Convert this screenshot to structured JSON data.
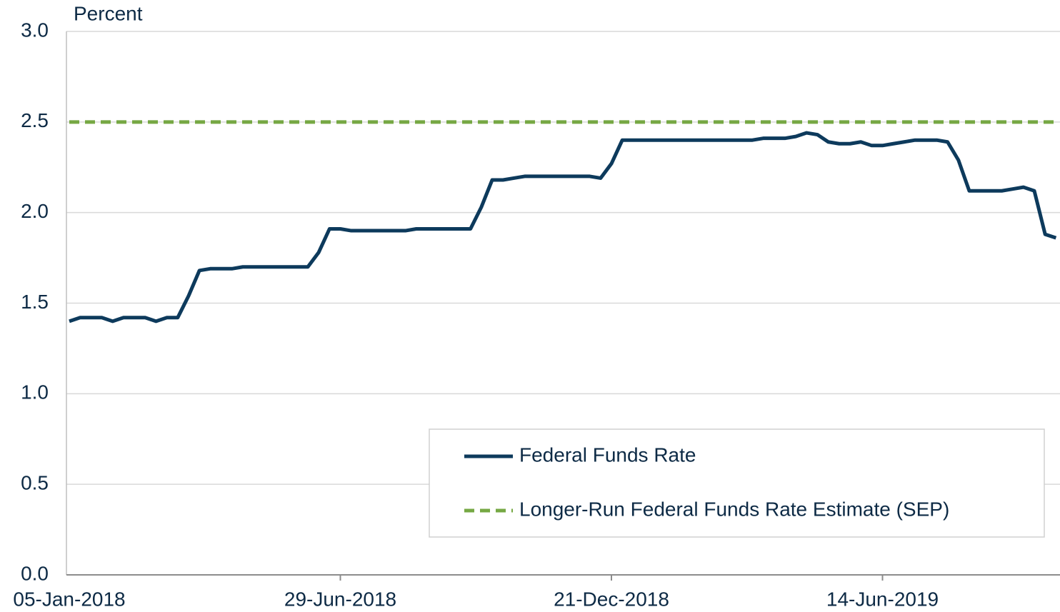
{
  "chart_data": {
    "type": "line",
    "y_axis_label": "Percent",
    "categories": [
      "05-Jan-2018",
      null,
      null,
      null,
      null,
      null,
      null,
      null,
      null,
      null,
      null,
      null,
      null,
      null,
      null,
      null,
      null,
      null,
      null,
      null,
      null,
      null,
      null,
      null,
      null,
      "29-Jun-2018",
      null,
      null,
      null,
      null,
      null,
      null,
      null,
      null,
      null,
      null,
      null,
      null,
      null,
      null,
      null,
      null,
      null,
      null,
      null,
      null,
      null,
      null,
      null,
      null,
      "21-Dec-2018",
      null,
      null,
      null,
      null,
      null,
      null,
      null,
      null,
      null,
      null,
      null,
      null,
      null,
      null,
      null,
      null,
      null,
      null,
      null,
      null,
      null,
      null,
      null,
      null,
      "14-Jun-2019",
      null,
      null,
      null,
      null,
      null,
      null,
      null,
      null,
      null,
      null,
      null,
      null,
      null,
      null,
      null,
      null
    ],
    "series": [
      {
        "name": "Federal Funds Rate",
        "color": "#0d3a5c",
        "dashed": false,
        "values": [
          1.4,
          1.42,
          1.42,
          1.42,
          1.4,
          1.42,
          1.42,
          1.42,
          1.4,
          1.42,
          1.42,
          1.54,
          1.68,
          1.69,
          1.69,
          1.69,
          1.7,
          1.7,
          1.7,
          1.7,
          1.7,
          1.7,
          1.7,
          1.78,
          1.91,
          1.91,
          1.9,
          1.9,
          1.9,
          1.9,
          1.9,
          1.9,
          1.91,
          1.91,
          1.91,
          1.91,
          1.91,
          1.91,
          2.03,
          2.18,
          2.18,
          2.19,
          2.2,
          2.2,
          2.2,
          2.2,
          2.2,
          2.2,
          2.2,
          2.19,
          2.27,
          2.4,
          2.4,
          2.4,
          2.4,
          2.4,
          2.4,
          2.4,
          2.4,
          2.4,
          2.4,
          2.4,
          2.4,
          2.4,
          2.41,
          2.41,
          2.41,
          2.42,
          2.44,
          2.43,
          2.39,
          2.38,
          2.38,
          2.39,
          2.37,
          2.37,
          2.38,
          2.39,
          2.4,
          2.4,
          2.4,
          2.39,
          2.29,
          2.12,
          2.12,
          2.12,
          2.12,
          2.13,
          2.14,
          2.12,
          1.88,
          1.86
        ]
      },
      {
        "name": "Longer-Run Federal Funds Rate Estimate (SEP)",
        "color": "#76a844",
        "dashed": true,
        "values": [
          2.5,
          2.5,
          2.5,
          2.5,
          2.5,
          2.5,
          2.5,
          2.5,
          2.5,
          2.5,
          2.5,
          2.5,
          2.5,
          2.5,
          2.5,
          2.5,
          2.5,
          2.5,
          2.5,
          2.5,
          2.5,
          2.5,
          2.5,
          2.5,
          2.5,
          2.5,
          2.5,
          2.5,
          2.5,
          2.5,
          2.5,
          2.5,
          2.5,
          2.5,
          2.5,
          2.5,
          2.5,
          2.5,
          2.5,
          2.5,
          2.5,
          2.5,
          2.5,
          2.5,
          2.5,
          2.5,
          2.5,
          2.5,
          2.5,
          2.5,
          2.5,
          2.5,
          2.5,
          2.5,
          2.5,
          2.5,
          2.5,
          2.5,
          2.5,
          2.5,
          2.5,
          2.5,
          2.5,
          2.5,
          2.5,
          2.5,
          2.5,
          2.5,
          2.5,
          2.5,
          2.5,
          2.5,
          2.5,
          2.5,
          2.5,
          2.5,
          2.5,
          2.5,
          2.5,
          2.5,
          2.5,
          2.5,
          2.5,
          2.5,
          2.5,
          2.5,
          2.5,
          2.5,
          2.5,
          2.5,
          2.5,
          2.5
        ]
      }
    ],
    "ylim": [
      0,
      3
    ],
    "yticks": [
      {
        "value": 0,
        "label": "0.0"
      },
      {
        "value": 0.5,
        "label": "0.5"
      },
      {
        "value": 1,
        "label": "1.0"
      },
      {
        "value": 1.5,
        "label": "1.5"
      },
      {
        "value": 2,
        "label": "2.0"
      },
      {
        "value": 2.5,
        "label": "2.5"
      },
      {
        "value": 3,
        "label": "3.0"
      }
    ],
    "grid": true,
    "legend": "lower-right"
  }
}
